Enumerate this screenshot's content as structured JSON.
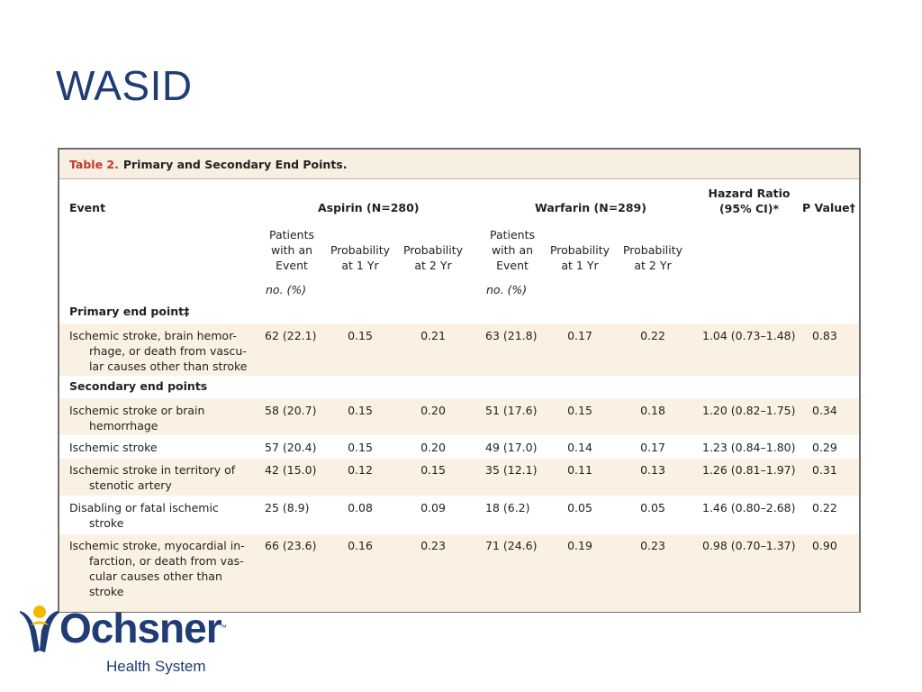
{
  "slide": {
    "title": "WASID"
  },
  "table": {
    "caption_number": "Table 2.",
    "caption_title": "Primary and Secondary End Points.",
    "headers": {
      "event": "Event",
      "aspirin": "Aspirin (N=280)",
      "warfarin": "Warfarin (N=289)",
      "hr_line1": "Hazard Ratio",
      "hr_line2": "(95% CI)*",
      "pvalue": "P Value†"
    },
    "subheaders": {
      "patients": [
        "Patients",
        "with an",
        "Event"
      ],
      "prob1": [
        "Probability",
        "at 1 Yr"
      ],
      "prob2": [
        "Probability",
        "at 2 Yr"
      ],
      "units": "no. (%)"
    },
    "sections": {
      "primary": "Primary end point‡",
      "secondary": "Secondary end points"
    },
    "rows": [
      {
        "event": [
          "Ischemic stroke, brain hemor-",
          "rhage, or death from vascu-",
          "lar causes other than stroke"
        ],
        "a_n": "62 (22.1)",
        "a_p1": "0.15",
        "a_p2": "0.21",
        "w_n": "63 (21.8)",
        "w_p1": "0.17",
        "w_p2": "0.22",
        "hr": "1.04 (0.73–1.48)",
        "p": "0.83"
      },
      {
        "event": [
          "Ischemic stroke or brain",
          "hemorrhage"
        ],
        "a_n": "58 (20.7)",
        "a_p1": "0.15",
        "a_p2": "0.20",
        "w_n": "51 (17.6)",
        "w_p1": "0.15",
        "w_p2": "0.18",
        "hr": "1.20 (0.82–1.75)",
        "p": "0.34"
      },
      {
        "event": [
          "Ischemic stroke"
        ],
        "a_n": "57 (20.4)",
        "a_p1": "0.15",
        "a_p2": "0.20",
        "w_n": "49 (17.0)",
        "w_p1": "0.14",
        "w_p2": "0.17",
        "hr": "1.23 (0.84–1.80)",
        "p": "0.29"
      },
      {
        "event": [
          "Ischemic stroke in territory of",
          "stenotic artery"
        ],
        "a_n": "42 (15.0)",
        "a_p1": "0.12",
        "a_p2": "0.15",
        "w_n": "35 (12.1)",
        "w_p1": "0.11",
        "w_p2": "0.13",
        "hr": "1.26 (0.81–1.97)",
        "p": "0.31"
      },
      {
        "event": [
          "Disabling or fatal ischemic",
          "stroke"
        ],
        "a_n": "25 (8.9)",
        "a_p1": "0.08",
        "a_p2": "0.09",
        "w_n": "18 (6.2)",
        "w_p1": "0.05",
        "w_p2": "0.05",
        "hr": "1.46 (0.80–2.68)",
        "p": "0.22"
      },
      {
        "event": [
          "Ischemic stroke, myocardial in-",
          "farction, or death from vas-",
          "cular causes other than",
          "stroke"
        ],
        "a_n": "66 (23.6)",
        "a_p1": "0.16",
        "a_p2": "0.23",
        "w_n": "71 (24.6)",
        "w_p1": "0.19",
        "w_p2": "0.23",
        "hr": "0.98 (0.70–1.37)",
        "p": "0.90"
      }
    ]
  },
  "logo": {
    "name": "Ochsner",
    "tm": "™",
    "subtitle": "Health System"
  },
  "colors": {
    "title": "#1f3c74",
    "caption_red": "#c0392b",
    "band": "#fbf1e3",
    "caption_bg": "#f7efe2"
  }
}
